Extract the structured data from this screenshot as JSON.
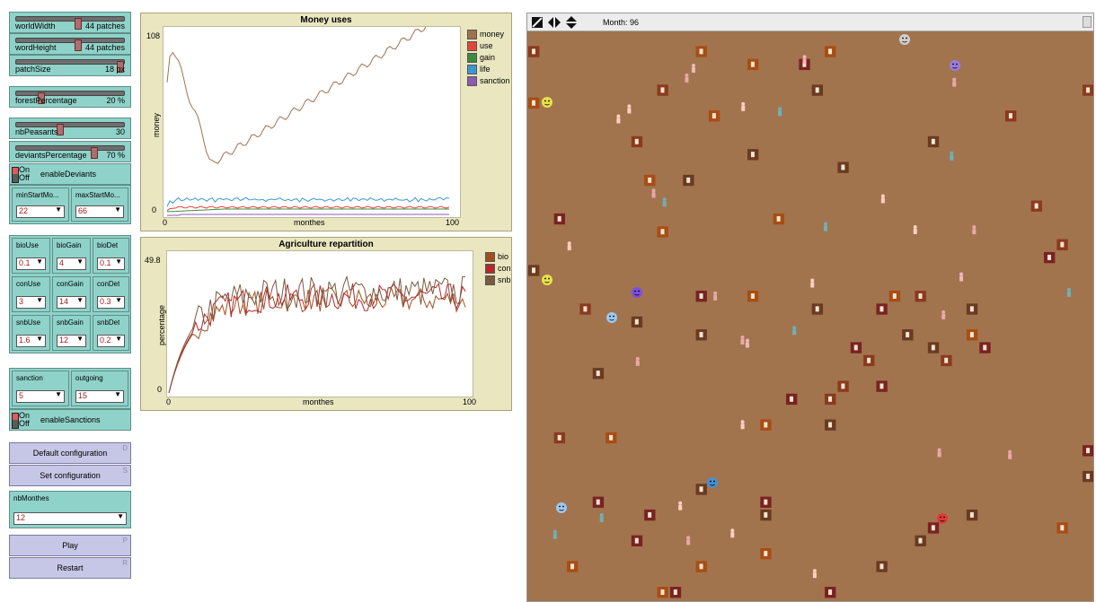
{
  "sliders": {
    "worldWidth": {
      "label": "worldWidth",
      "value": "44 patches",
      "fraction": 0.55
    },
    "worldHeight": {
      "label": "wordHeight",
      "value": "44 patches",
      "fraction": 0.55
    },
    "patchSize": {
      "label": "patchSize",
      "value": "18 px",
      "fraction": 0.95
    },
    "forestPercentage": {
      "label": "forestPercentage",
      "value": "20 %",
      "fraction": 0.2
    },
    "nbPeasants": {
      "label": "nbPeasants",
      "value": "30",
      "fraction": 0.38
    },
    "deviantsPercentage": {
      "label": "deviantsPercentage",
      "value": "70 %",
      "fraction": 0.7
    }
  },
  "switches": {
    "deviants": {
      "on": "On",
      "off": "Off",
      "label": "enableDeviants"
    },
    "sanctions": {
      "on": "On",
      "off": "Off",
      "label": "enableSanctions"
    }
  },
  "start": {
    "min": {
      "label": "minStartMo...",
      "value": "22"
    },
    "max": {
      "label": "maxStartMo...",
      "value": "66"
    }
  },
  "agri": {
    "bioUse": {
      "label": "bioUse",
      "value": "0.1"
    },
    "bioGain": {
      "label": "bioGain",
      "value": "4"
    },
    "bioDet": {
      "label": "bioDet",
      "value": "0.1"
    },
    "conUse": {
      "label": "conUse",
      "value": "3"
    },
    "conGain": {
      "label": "conGain",
      "value": "14"
    },
    "conDet": {
      "label": "conDet",
      "value": "0.3"
    },
    "snbUse": {
      "label": "snbUse",
      "value": "1.6"
    },
    "snbGain": {
      "label": "snbGain",
      "value": "12"
    },
    "snbDet": {
      "label": "snbDet",
      "value": "0.2"
    }
  },
  "sanction": {
    "sanction": {
      "label": "sanction",
      "value": "5"
    },
    "outgoing": {
      "label": "outgoing",
      "value": "15"
    }
  },
  "buttons": {
    "default": {
      "label": "Default configuration",
      "key": "D"
    },
    "set": {
      "label": "Set configuration",
      "key": "S"
    },
    "play": {
      "label": "Play",
      "key": "P"
    },
    "restart": {
      "label": "Restart",
      "key": "R"
    }
  },
  "nbMonthes": {
    "label": "nbMonthes",
    "value": "12"
  },
  "money_plot": {
    "title": "Money uses",
    "ymax": "108",
    "ymin": "0",
    "xmin": "0",
    "xmax": "100",
    "xlabel": "monthes",
    "ylabel": "money",
    "legend": [
      {
        "name": "money",
        "color": "#a0714e"
      },
      {
        "name": "use",
        "color": "#e0463c"
      },
      {
        "name": "gain",
        "color": "#3c8a3c"
      },
      {
        "name": "life",
        "color": "#3c96d2"
      },
      {
        "name": "sanction",
        "color": "#8c5ab4"
      }
    ]
  },
  "agri_plot": {
    "title": "Agriculture repartition",
    "ymax": "49.8",
    "ymin": "0",
    "xmin": "0",
    "xmax": "100",
    "xlabel": "monthes",
    "ylabel": "percentage",
    "legend": [
      {
        "name": "bio",
        "color": "#a0501e"
      },
      {
        "name": "con",
        "color": "#b4282d"
      },
      {
        "name": "snb",
        "color": "#7a5a40"
      }
    ]
  },
  "world": {
    "month_label": "Month: 96"
  }
}
